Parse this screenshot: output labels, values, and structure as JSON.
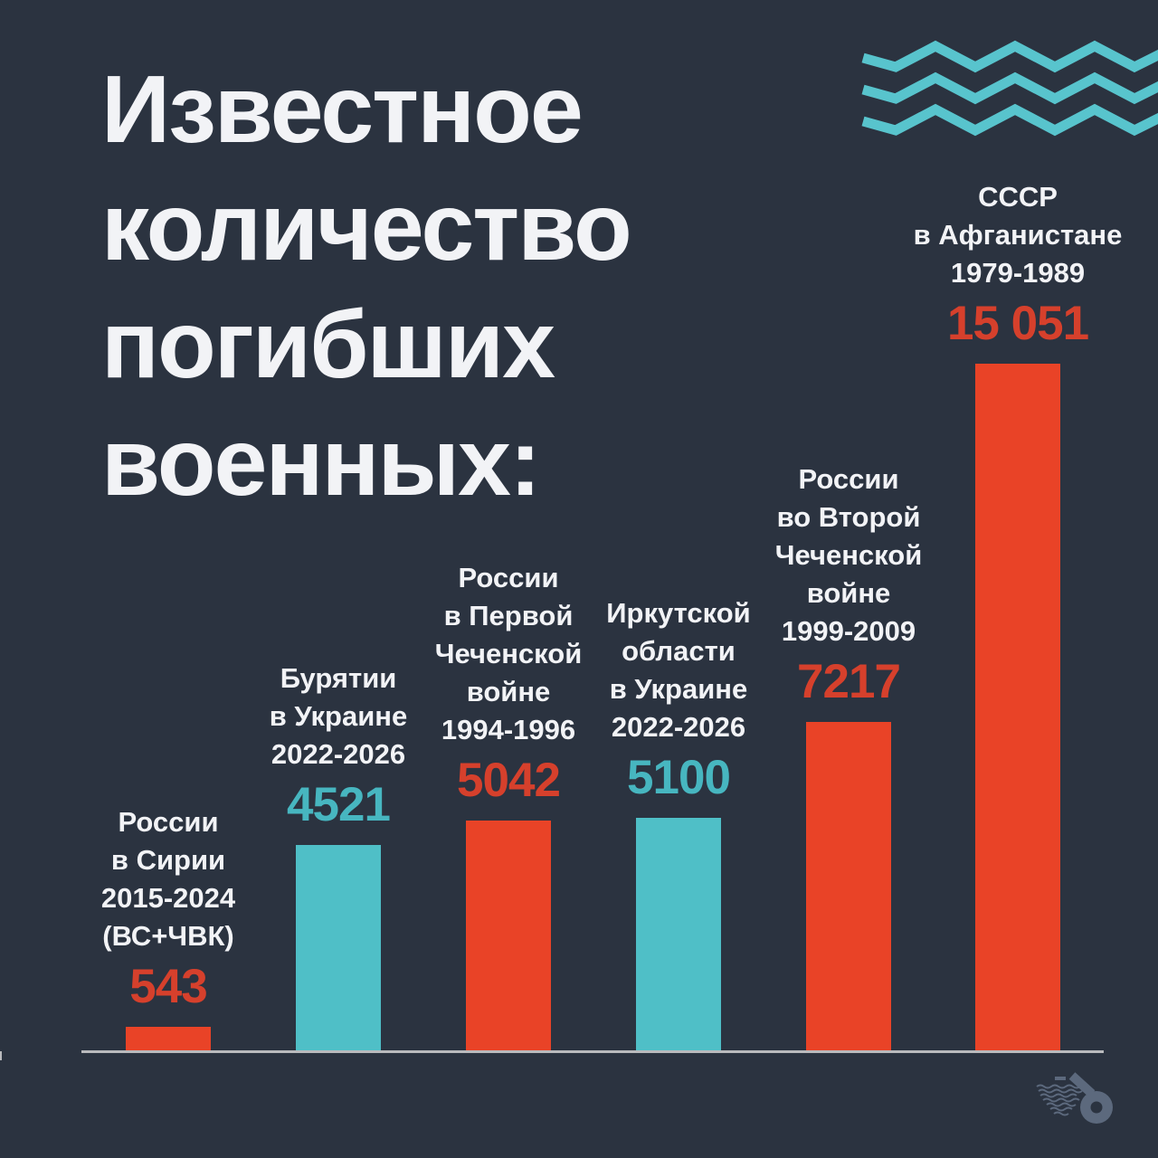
{
  "title": "Известное\nколичество\nпогибших\nвоенных:",
  "palette": {
    "background": "#2b3340",
    "text_white": "#f2f3f6",
    "red_bar": "#e94327",
    "red_text": "#d6402c",
    "teal_bar": "#4fbfc7",
    "teal_text": "#47b6c0",
    "wave": "#58c4cd",
    "axis": "#b9babd",
    "logo": "#8496b0"
  },
  "icons": {
    "waves": "zigzag-waves-decoration",
    "logo": "letter-b-with-waves-logo"
  },
  "chart_data": {
    "type": "bar",
    "title": "Известное количество погибших военных:",
    "xlabel": "",
    "ylabel": "",
    "ylim": [
      0,
      15051
    ],
    "grid": false,
    "legend": false,
    "bars": [
      {
        "label": "России\nв Сирии\n2015-2024\n(ВС+ЧВК)",
        "value": 543,
        "value_label": "543",
        "color": "red"
      },
      {
        "label": "Бурятии\nв Украине\n2022-2026",
        "value": 4521,
        "value_label": "4521",
        "color": "teal"
      },
      {
        "label": "России\nв Первой\nЧеченской\nвойне\n1994-1996",
        "value": 5042,
        "value_label": "5042",
        "color": "red"
      },
      {
        "label": "Иркутской\nобласти\nв Украине\n2022-2026",
        "value": 5100,
        "value_label": "5100",
        "color": "teal"
      },
      {
        "label": "России\nво Второй\nЧеченской\nвойне\n1999-2009",
        "value": 7217,
        "value_label": "7217",
        "color": "red"
      },
      {
        "label": "СССР\nв Афганистане\n1979-1989",
        "value": 15051,
        "value_label": "15 051",
        "color": "red"
      }
    ]
  }
}
